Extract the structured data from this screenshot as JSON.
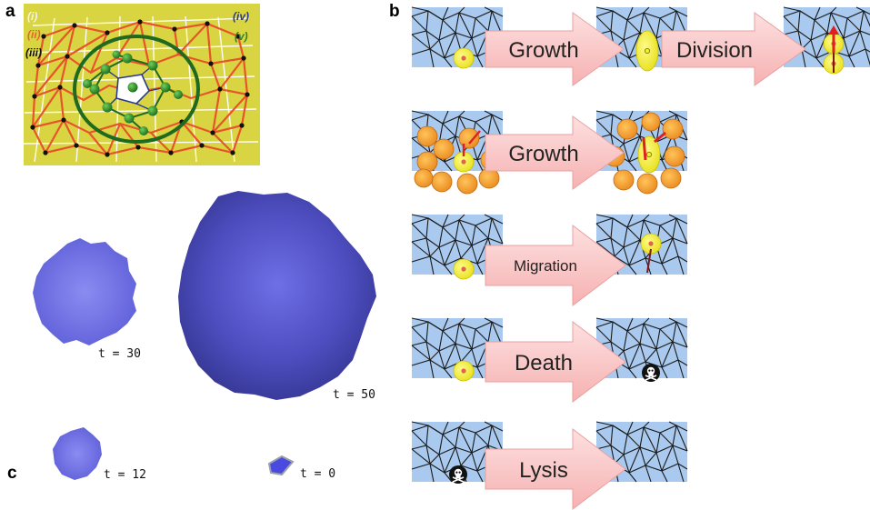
{
  "panels": {
    "a": "a",
    "b": "b",
    "c": "c"
  },
  "panel_a": {
    "labels": [
      {
        "text": "(i)",
        "color": "#f2f2f2"
      },
      {
        "text": "(ii)",
        "color": "#e8642c"
      },
      {
        "text": "(iii)",
        "color": "#111111"
      },
      {
        "text": "(iv)",
        "color": "#2a3a8a"
      },
      {
        "text": "(v)",
        "color": "#2f7d2f"
      }
    ],
    "background": "#d9d542"
  },
  "panel_b": {
    "rows": [
      {
        "arrows": [
          "Growth",
          "Division"
        ]
      },
      {
        "arrows": [
          "Growth"
        ]
      },
      {
        "arrows": [
          "Migration"
        ]
      },
      {
        "arrows": [
          "Death"
        ]
      },
      {
        "arrows": [
          "Lysis"
        ]
      }
    ],
    "colors": {
      "tile": "#a9c9ee",
      "arrow": "#f9c6c6",
      "cell": "#f4ee2a",
      "neighbor": "#f29a2a",
      "force": "#e02020"
    }
  },
  "panel_c": {
    "timepoints": [
      "t = 30",
      "t = 50",
      "t = 12",
      "t = 0"
    ],
    "color": "#5a5ad0"
  }
}
